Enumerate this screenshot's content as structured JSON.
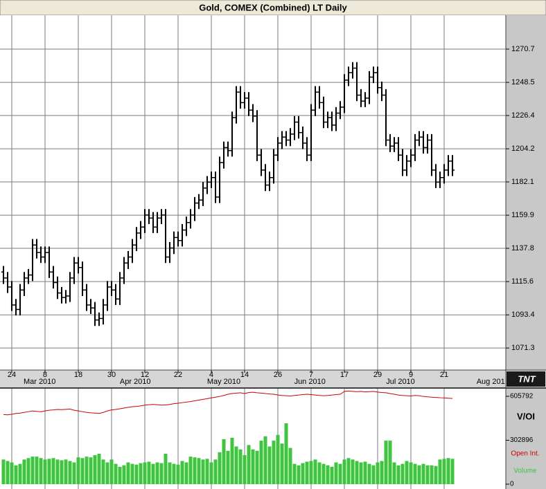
{
  "logo": "TNT",
  "chart_data": [
    {
      "type": "ohlc",
      "title": "Gold, COMEX (Combined) LT Daily",
      "x": [
        0,
        1,
        2,
        3,
        4,
        5,
        6,
        7,
        8,
        9,
        10,
        11,
        12,
        13,
        14,
        15,
        16,
        17,
        18,
        19,
        20,
        21,
        22,
        23,
        24,
        25,
        26,
        27,
        28,
        29,
        30,
        31,
        32,
        33,
        34,
        35,
        36,
        37,
        38,
        39,
        40,
        41,
        42,
        43,
        44,
        45,
        46,
        47,
        48,
        49,
        50,
        51,
        52,
        53,
        54,
        55,
        56,
        57,
        58,
        59,
        60,
        61,
        62,
        63,
        64,
        65,
        66,
        67,
        68,
        69,
        70,
        71,
        72,
        73,
        74,
        75,
        76,
        77,
        78,
        79,
        80,
        81,
        82,
        83,
        84,
        85,
        86,
        87,
        88,
        89,
        90,
        91,
        92,
        93,
        94,
        95,
        96,
        97,
        98,
        99,
        100,
        101,
        102,
        103,
        104,
        105,
        106,
        107,
        108
      ],
      "series": [
        {
          "color": "#000000",
          "open": [
            1122,
            1118,
            1112,
            1100,
            1097,
            1110,
            1118,
            1120,
            1140,
            1135,
            1132,
            1135,
            1122,
            1115,
            1108,
            1105,
            1106,
            1118,
            1128,
            1125,
            1110,
            1100,
            1098,
            1090,
            1091,
            1100,
            1112,
            1110,
            1104,
            1118,
            1128,
            1132,
            1140,
            1148,
            1152,
            1160,
            1158,
            1152,
            1158,
            1160,
            1132,
            1138,
            1145,
            1143,
            1150,
            1155,
            1160,
            1168,
            1170,
            1178,
            1182,
            1185,
            1172,
            1195,
            1205,
            1203,
            1225,
            1242,
            1235,
            1238,
            1230,
            1226,
            1200,
            1190,
            1180,
            1185,
            1200,
            1208,
            1212,
            1210,
            1214,
            1222,
            1215,
            1208,
            1200,
            1230,
            1242,
            1235,
            1222,
            1225,
            1220,
            1228,
            1232,
            1250,
            1255,
            1258,
            1240,
            1236,
            1238,
            1252,
            1255,
            1245,
            1240,
            1210,
            1206,
            1208,
            1200,
            1190,
            1196,
            1200,
            1210,
            1212,
            1205,
            1210,
            1190,
            1182,
            1185,
            1190,
            1196
          ],
          "high": [
            1126,
            1122,
            1116,
            1104,
            1114,
            1122,
            1124,
            1144,
            1144,
            1139,
            1139,
            1139,
            1126,
            1119,
            1112,
            1110,
            1122,
            1132,
            1132,
            1129,
            1114,
            1104,
            1102,
            1095,
            1104,
            1116,
            1116,
            1114,
            1122,
            1132,
            1136,
            1144,
            1152,
            1156,
            1164,
            1164,
            1162,
            1162,
            1164,
            1164,
            1142,
            1149,
            1149,
            1154,
            1159,
            1164,
            1172,
            1174,
            1182,
            1186,
            1189,
            1189,
            1199,
            1209,
            1209,
            1229,
            1246,
            1246,
            1242,
            1242,
            1234,
            1230,
            1204,
            1194,
            1189,
            1204,
            1212,
            1216,
            1216,
            1218,
            1226,
            1226,
            1219,
            1212,
            1234,
            1246,
            1246,
            1239,
            1229,
            1229,
            1232,
            1236,
            1254,
            1259,
            1262,
            1262,
            1244,
            1242,
            1256,
            1259,
            1259,
            1249,
            1244,
            1214,
            1212,
            1212,
            1204,
            1200,
            1204,
            1214,
            1216,
            1216,
            1214,
            1214,
            1194,
            1189,
            1194,
            1200,
            1200
          ],
          "low": [
            1114,
            1108,
            1096,
            1093,
            1093,
            1106,
            1114,
            1116,
            1131,
            1128,
            1128,
            1118,
            1111,
            1104,
            1101,
            1101,
            1102,
            1114,
            1121,
            1106,
            1096,
            1094,
            1086,
            1086,
            1087,
            1096,
            1106,
            1100,
            1100,
            1114,
            1124,
            1128,
            1136,
            1144,
            1148,
            1154,
            1148,
            1148,
            1154,
            1128,
            1128,
            1134,
            1139,
            1139,
            1146,
            1151,
            1156,
            1164,
            1166,
            1174,
            1178,
            1168,
            1168,
            1191,
            1199,
            1199,
            1221,
            1231,
            1231,
            1226,
            1222,
            1196,
            1186,
            1176,
            1176,
            1181,
            1196,
            1204,
            1206,
            1206,
            1210,
            1211,
            1204,
            1196,
            1196,
            1226,
            1231,
            1218,
            1218,
            1216,
            1216,
            1224,
            1228,
            1246,
            1251,
            1236,
            1232,
            1232,
            1234,
            1248,
            1241,
            1236,
            1206,
            1202,
            1202,
            1196,
            1186,
            1186,
            1192,
            1196,
            1206,
            1201,
            1201,
            1186,
            1178,
            1178,
            1181,
            1186,
            1186
          ],
          "close": [
            1118,
            1112,
            1100,
            1097,
            1110,
            1118,
            1120,
            1140,
            1135,
            1132,
            1135,
            1122,
            1115,
            1108,
            1105,
            1106,
            1118,
            1128,
            1125,
            1110,
            1100,
            1098,
            1090,
            1091,
            1100,
            1112,
            1110,
            1104,
            1118,
            1128,
            1132,
            1140,
            1148,
            1152,
            1160,
            1158,
            1152,
            1158,
            1160,
            1132,
            1138,
            1145,
            1143,
            1150,
            1155,
            1160,
            1168,
            1170,
            1178,
            1182,
            1185,
            1172,
            1195,
            1205,
            1203,
            1225,
            1242,
            1235,
            1238,
            1230,
            1226,
            1200,
            1190,
            1180,
            1185,
            1200,
            1208,
            1212,
            1210,
            1214,
            1222,
            1215,
            1208,
            1200,
            1230,
            1242,
            1235,
            1222,
            1225,
            1220,
            1228,
            1232,
            1250,
            1255,
            1258,
            1240,
            1236,
            1238,
            1252,
            1255,
            1245,
            1240,
            1210,
            1206,
            1208,
            1200,
            1190,
            1196,
            1200,
            1210,
            1212,
            1205,
            1210,
            1190,
            1182,
            1185,
            1190,
            1196,
            1190
          ]
        }
      ],
      "xlim": [
        -0.83,
        120.83
      ],
      "xticks": [
        {
          "value": 2,
          "label": "24"
        },
        {
          "value": 10,
          "label": "8"
        },
        {
          "value": 18,
          "label": "18"
        },
        {
          "value": 26,
          "label": "30"
        },
        {
          "value": 34,
          "label": "12"
        },
        {
          "value": 42,
          "label": "22"
        },
        {
          "value": 50,
          "label": "4"
        },
        {
          "value": 58,
          "label": "14"
        },
        {
          "value": 66,
          "label": "26"
        },
        {
          "value": 74,
          "label": "7"
        },
        {
          "value": 82,
          "label": "17"
        },
        {
          "value": 90,
          "label": "29"
        },
        {
          "value": 98,
          "label": "9"
        },
        {
          "value": 106,
          "label": "21"
        }
      ],
      "month_ticks": [
        {
          "value": 8.7,
          "label": "Mar 2010"
        },
        {
          "value": 31.7,
          "label": "Apr 2010"
        },
        {
          "value": 53,
          "label": "May 2010"
        },
        {
          "value": 73.7,
          "label": "Jun 2010"
        },
        {
          "value": 95.5,
          "label": "Jul 2010"
        },
        {
          "value": 117.2,
          "label": "Aug 201"
        }
      ],
      "ylim": [
        1056.6,
        1293.3
      ],
      "yticks": [
        1071.3,
        1093.4,
        1115.6,
        1137.8,
        1159.9,
        1182.1,
        1204.2,
        1226.4,
        1248.5,
        1270.7
      ],
      "grid": true
    },
    {
      "type": "bar",
      "title": "V/OI",
      "x": [
        0,
        1,
        2,
        3,
        4,
        5,
        6,
        7,
        8,
        9,
        10,
        11,
        12,
        13,
        14,
        15,
        16,
        17,
        18,
        19,
        20,
        21,
        22,
        23,
        24,
        25,
        26,
        27,
        28,
        29,
        30,
        31,
        32,
        33,
        34,
        35,
        36,
        37,
        38,
        39,
        40,
        41,
        42,
        43,
        44,
        45,
        46,
        47,
        48,
        49,
        50,
        51,
        52,
        53,
        54,
        55,
        56,
        57,
        58,
        59,
        60,
        61,
        62,
        63,
        64,
        65,
        66,
        67,
        68,
        69,
        70,
        71,
        72,
        73,
        74,
        75,
        76,
        77,
        78,
        79,
        80,
        81,
        82,
        83,
        84,
        85,
        86,
        87,
        88,
        89,
        90,
        91,
        92,
        93,
        94,
        95,
        96,
        97,
        98,
        99,
        100,
        101,
        102,
        103,
        104,
        105,
        106,
        107,
        108
      ],
      "series": [
        {
          "name": "Open Int.",
          "type": "line",
          "color": "#cc0000",
          "values": [
            480000,
            478000,
            482000,
            488000,
            490000,
            495000,
            500000,
            505000,
            502000,
            500000,
            505000,
            510000,
            512000,
            515000,
            514000,
            516000,
            518000,
            510000,
            505000,
            500000,
            495000,
            492000,
            490000,
            488000,
            495000,
            505000,
            512000,
            515000,
            520000,
            525000,
            530000,
            534000,
            536000,
            540000,
            545000,
            548000,
            550000,
            548000,
            545000,
            546000,
            550000,
            555000,
            558000,
            562000,
            566000,
            570000,
            575000,
            580000,
            585000,
            590000,
            595000,
            600000,
            605000,
            612000,
            620000,
            625000,
            628000,
            630000,
            625000,
            632000,
            634000,
            630000,
            628000,
            625000,
            622000,
            620000,
            615000,
            612000,
            610000,
            608000,
            612000,
            615000,
            618000,
            620000,
            618000,
            615000,
            612000,
            610000,
            612000,
            615000,
            618000,
            620000,
            640000,
            642000,
            640000,
            638000,
            640000,
            636000,
            638000,
            640000,
            635000,
            632000,
            630000,
            625000,
            620000,
            615000,
            612000,
            610000,
            608000,
            612000,
            610000,
            605000,
            602000,
            600000,
            598000,
            596000,
            595000,
            593000,
            591000
          ]
        },
        {
          "name": "Volume",
          "type": "bar",
          "color": "#3fc43f",
          "values": [
            170000,
            160000,
            150000,
            130000,
            140000,
            170000,
            180000,
            190000,
            190000,
            180000,
            170000,
            175000,
            180000,
            170000,
            165000,
            170000,
            160000,
            150000,
            185000,
            180000,
            190000,
            185000,
            200000,
            210000,
            170000,
            150000,
            170000,
            140000,
            120000,
            130000,
            150000,
            140000,
            135000,
            145000,
            150000,
            155000,
            140000,
            150000,
            145000,
            210000,
            150000,
            140000,
            135000,
            160000,
            150000,
            190000,
            185000,
            180000,
            170000,
            175000,
            150000,
            170000,
            220000,
            310000,
            230000,
            320000,
            260000,
            240000,
            200000,
            270000,
            240000,
            230000,
            300000,
            330000,
            260000,
            300000,
            340000,
            280000,
            420000,
            250000,
            140000,
            130000,
            145000,
            155000,
            160000,
            170000,
            150000,
            140000,
            130000,
            120000,
            150000,
            140000,
            170000,
            180000,
            170000,
            160000,
            150000,
            155000,
            140000,
            130000,
            150000,
            160000,
            300000,
            300000,
            150000,
            130000,
            140000,
            160000,
            150000,
            140000,
            130000,
            140000,
            130000,
            130000,
            125000,
            170000,
            175000,
            180000,
            175000
          ]
        }
      ],
      "xlim": [
        -0.83,
        120.83
      ],
      "ylim": [
        0,
        644000
      ],
      "yticks": [
        0,
        302896,
        605792
      ],
      "grid": false
    }
  ]
}
